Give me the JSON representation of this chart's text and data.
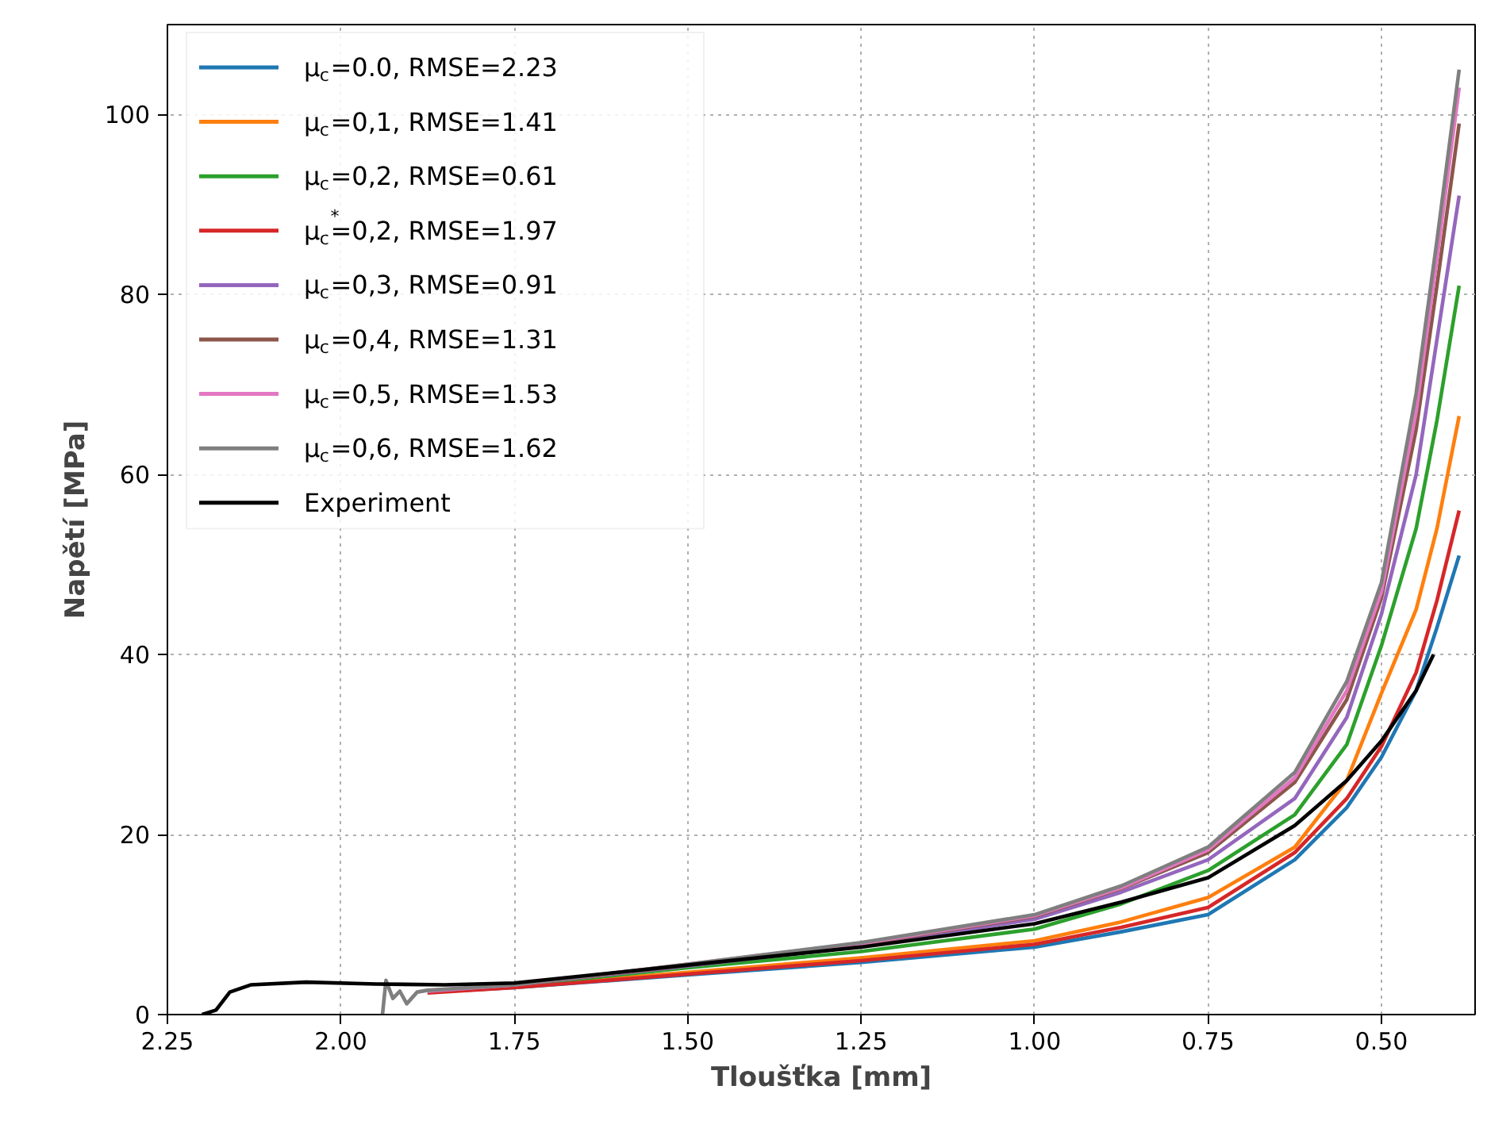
{
  "chart_data": {
    "type": "line",
    "xlabel": "Tloušťka [mm]",
    "ylabel": "Napětí [MPa]",
    "xlim": [
      2.25,
      0.365
    ],
    "ylim": [
      0,
      110
    ],
    "xticks": [
      {
        "value": 2.25,
        "label": "2.25"
      },
      {
        "value": 2.0,
        "label": "2.00"
      },
      {
        "value": 1.75,
        "label": "1.75"
      },
      {
        "value": 1.5,
        "label": "1.50"
      },
      {
        "value": 1.25,
        "label": "1.25"
      },
      {
        "value": 1.0,
        "label": "1.00"
      },
      {
        "value": 0.75,
        "label": "0.75"
      },
      {
        "value": 0.5,
        "label": "0.50"
      }
    ],
    "yticks": [
      0,
      20,
      40,
      60,
      80,
      100
    ],
    "grid": true,
    "legend": "top left",
    "series": [
      {
        "name": "μ$_{c}$=0.0, RMSE=2.23",
        "color": "#1f77b4",
        "x": [
          1.875,
          1.75,
          1.5,
          1.25,
          1.0,
          0.875,
          0.75,
          0.625,
          0.55,
          0.5,
          0.45,
          0.42,
          0.388
        ],
        "values": [
          2.5,
          3.0,
          4.4,
          5.8,
          7.5,
          9.2,
          11.1,
          17.2,
          23,
          28.6,
          36,
          43,
          51
        ]
      },
      {
        "name": "μ$_{c}$=0,1, RMSE=1.41",
        "color": "#ff7f0e",
        "x": [
          1.875,
          1.75,
          1.5,
          1.25,
          1.0,
          0.875,
          0.75,
          0.625,
          0.55,
          0.5,
          0.45,
          0.42,
          0.388
        ],
        "values": [
          2.5,
          3.1,
          4.7,
          6.3,
          8.2,
          10.3,
          13.0,
          18.6,
          26,
          35.7,
          45,
          54,
          66.5
        ]
      },
      {
        "name": "μ$_{c}$=0,2, RMSE=0.61",
        "color": "#2ca02c",
        "x": [
          1.875,
          1.75,
          1.5,
          1.25,
          1.0,
          0.875,
          0.75,
          0.625,
          0.55,
          0.5,
          0.45,
          0.42,
          0.388
        ],
        "values": [
          2.6,
          3.2,
          5.2,
          7.0,
          9.5,
          12.3,
          16.0,
          22.2,
          30,
          41,
          54,
          66,
          81
        ]
      },
      {
        "name": "μ$_{c}$$^{*}$=0,2, RMSE=1.97",
        "color": "#d62728",
        "x": [
          1.875,
          1.75,
          1.5,
          1.25,
          1.0,
          0.875,
          0.75,
          0.625,
          0.55,
          0.5,
          0.45,
          0.42,
          0.388
        ],
        "values": [
          2.4,
          3.0,
          4.5,
          6.0,
          7.8,
          9.7,
          11.9,
          18.0,
          24,
          29.8,
          38,
          46,
          56
        ]
      },
      {
        "name": "μ$_{c}$=0,3, RMSE=0.91",
        "color": "#9467bd",
        "x": [
          1.875,
          1.75,
          1.5,
          1.25,
          1.0,
          0.875,
          0.75,
          0.625,
          0.55,
          0.5,
          0.45,
          0.42,
          0.388
        ],
        "values": [
          2.6,
          3.3,
          5.4,
          7.6,
          10.6,
          13.6,
          17.2,
          24.0,
          33,
          44.5,
          60,
          75,
          91
        ]
      },
      {
        "name": "μ$_{c}$=0,4, RMSE=1.31",
        "color": "#8c564b",
        "x": [
          1.875,
          1.75,
          1.5,
          1.25,
          1.0,
          0.875,
          0.75,
          0.625,
          0.55,
          0.5,
          0.45,
          0.42,
          0.388
        ],
        "values": [
          2.6,
          3.3,
          5.5,
          7.8,
          10.9,
          14.0,
          18.0,
          25.8,
          35,
          46.3,
          65,
          81,
          99
        ]
      },
      {
        "name": "μ$_{c}$=0,5, RMSE=1.53",
        "color": "#e377c2",
        "x": [
          1.875,
          1.75,
          1.5,
          1.25,
          1.0,
          0.875,
          0.75,
          0.625,
          0.55,
          0.5,
          0.45,
          0.42,
          0.388
        ],
        "values": [
          2.6,
          3.3,
          5.6,
          7.9,
          11.0,
          14.1,
          18.3,
          26.3,
          36,
          47,
          67,
          84,
          103
        ]
      },
      {
        "name": "μ$_{c}$=0,6, RMSE=1.62",
        "color": "#7f7f7f",
        "x": [
          1.94,
          1.935,
          1.925,
          1.915,
          1.905,
          1.89,
          1.875,
          1.75,
          1.5,
          1.25,
          1.0,
          0.875,
          0.75,
          0.625,
          0.55,
          0.5,
          0.45,
          0.42,
          0.388
        ],
        "values": [
          0,
          3.8,
          1.8,
          2.6,
          1.2,
          2.5,
          2.7,
          3.3,
          5.6,
          8.0,
          11.1,
          14.3,
          18.6,
          26.9,
          37,
          48,
          69,
          86,
          105
        ]
      },
      {
        "name": "Experiment",
        "color": "#000000",
        "x": [
          2.2,
          2.18,
          2.16,
          2.13,
          2.05,
          1.95,
          1.85,
          1.75,
          1.5,
          1.25,
          1.0,
          0.875,
          0.75,
          0.625,
          0.55,
          0.5,
          0.45,
          0.425
        ],
        "values": [
          0,
          0.5,
          2.5,
          3.3,
          3.6,
          3.4,
          3.3,
          3.5,
          5.5,
          7.5,
          10.1,
          12.5,
          15.2,
          21.0,
          26,
          30.4,
          36,
          40
        ]
      }
    ]
  }
}
